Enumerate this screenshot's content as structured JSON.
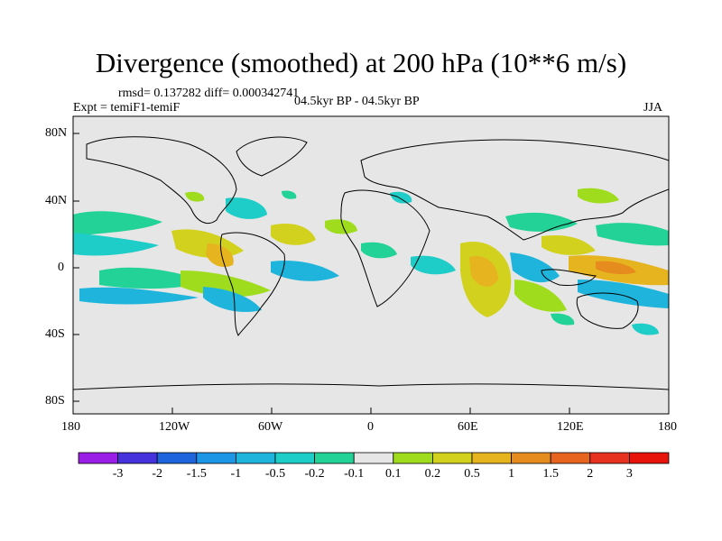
{
  "title": "Divergence (smoothed) at 200 hPa (10**6 m/s)",
  "stats": "rmsd= 0.137282 diff= 0.000342741",
  "experiment": "Expt = temiF1-temiF",
  "period": "04.5kyr BP - 04.5kyr BP",
  "season": "JJA",
  "y_ticks": [
    "80N",
    "40N",
    "0",
    "40S",
    "80S"
  ],
  "x_ticks": [
    "180",
    "120W",
    "60W",
    "0",
    "60E",
    "120E",
    "180"
  ],
  "colorbar": {
    "labels": [
      "-3",
      "-2",
      "-1.5",
      "-1",
      "-0.5",
      "-0.2",
      "-0.1",
      "0.1",
      "0.2",
      "0.5",
      "1",
      "1.5",
      "2",
      "3"
    ],
    "colors": [
      "#9a1ee6",
      "#4632dc",
      "#1e64dc",
      "#1e96e6",
      "#1eb4dc",
      "#1ecdc8",
      "#23d296",
      "#e6e6e6",
      "#a0dc1e",
      "#d2d21e",
      "#e6b41e",
      "#e68c1e",
      "#e6641e",
      "#e6321e",
      "#e6140a"
    ]
  }
}
